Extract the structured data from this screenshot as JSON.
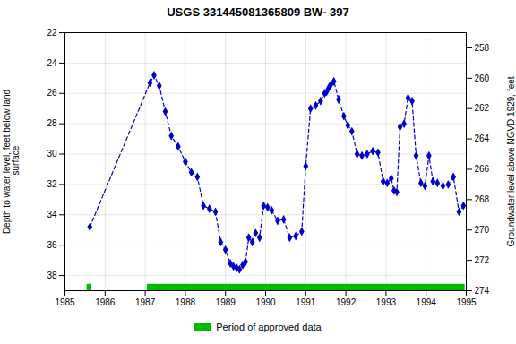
{
  "chart_data": {
    "type": "line",
    "title": "USGS 331445081365809 BW- 397",
    "y_label": "Depth to water level, feet below land\n surface",
    "y2_label": "Groundwater level above NGVD 1929, feet",
    "color": "#0000cc",
    "marker": "diamond",
    "line_style": "dashed",
    "grid": true,
    "legend": "bottom",
    "xlim": [
      1985.0,
      1995.0
    ],
    "xticks": [
      1985,
      1986,
      1987,
      1988,
      1989,
      1990,
      1991,
      1992,
      1993,
      1994,
      1995
    ],
    "ylim": [
      39,
      22
    ],
    "yticks": [
      22,
      24,
      26,
      28,
      30,
      32,
      34,
      36,
      38
    ],
    "y2lim": [
      274,
      257
    ],
    "y2ticks": [
      274,
      272,
      270,
      268,
      266,
      264,
      262,
      260,
      258
    ],
    "approved_periods": {
      "name": "Period of approved data",
      "color": "#00bb00",
      "ranges": [
        [
          1985.55,
          1985.67
        ],
        [
          1987.05,
          1994.97
        ]
      ]
    },
    "x": [
      1985.62,
      1987.12,
      1987.22,
      1987.35,
      1987.5,
      1987.65,
      1987.82,
      1988.0,
      1988.15,
      1988.3,
      1988.45,
      1988.6,
      1988.75,
      1988.88,
      1989.0,
      1989.12,
      1989.2,
      1989.28,
      1989.35,
      1989.43,
      1989.5,
      1989.58,
      1989.67,
      1989.75,
      1989.85,
      1989.95,
      1990.05,
      1990.15,
      1990.3,
      1990.45,
      1990.6,
      1990.75,
      1990.9,
      1991.0,
      1991.12,
      1991.25,
      1991.37,
      1991.47,
      1991.52,
      1991.58,
      1991.63,
      1991.7,
      1991.82,
      1991.95,
      1992.05,
      1992.15,
      1992.28,
      1992.4,
      1992.53,
      1992.67,
      1992.8,
      1992.93,
      1993.03,
      1993.13,
      1993.2,
      1993.27,
      1993.35,
      1993.45,
      1993.55,
      1993.65,
      1993.75,
      1993.87,
      1993.97,
      1994.07,
      1994.17,
      1994.28,
      1994.42,
      1994.55,
      1994.68,
      1994.82,
      1994.93
    ],
    "values": [
      34.8,
      25.3,
      24.8,
      25.5,
      27.2,
      28.8,
      29.5,
      30.5,
      31.2,
      31.5,
      33.4,
      33.6,
      33.8,
      35.8,
      36.3,
      37.2,
      37.4,
      37.5,
      37.6,
      37.3,
      37.1,
      35.5,
      35.8,
      35.2,
      35.5,
      33.4,
      33.5,
      33.7,
      34.4,
      34.3,
      35.5,
      35.4,
      35.1,
      30.8,
      27.0,
      26.8,
      26.5,
      26.0,
      25.9,
      25.6,
      25.4,
      25.2,
      26.4,
      27.5,
      28.1,
      28.5,
      30.0,
      30.1,
      30.0,
      29.8,
      29.9,
      31.8,
      31.9,
      31.6,
      32.4,
      32.5,
      28.2,
      28.0,
      26.3,
      26.5,
      30.1,
      31.9,
      32.1,
      30.1,
      31.8,
      31.9,
      32.1,
      32.0,
      31.5,
      33.8,
      33.4
    ]
  }
}
